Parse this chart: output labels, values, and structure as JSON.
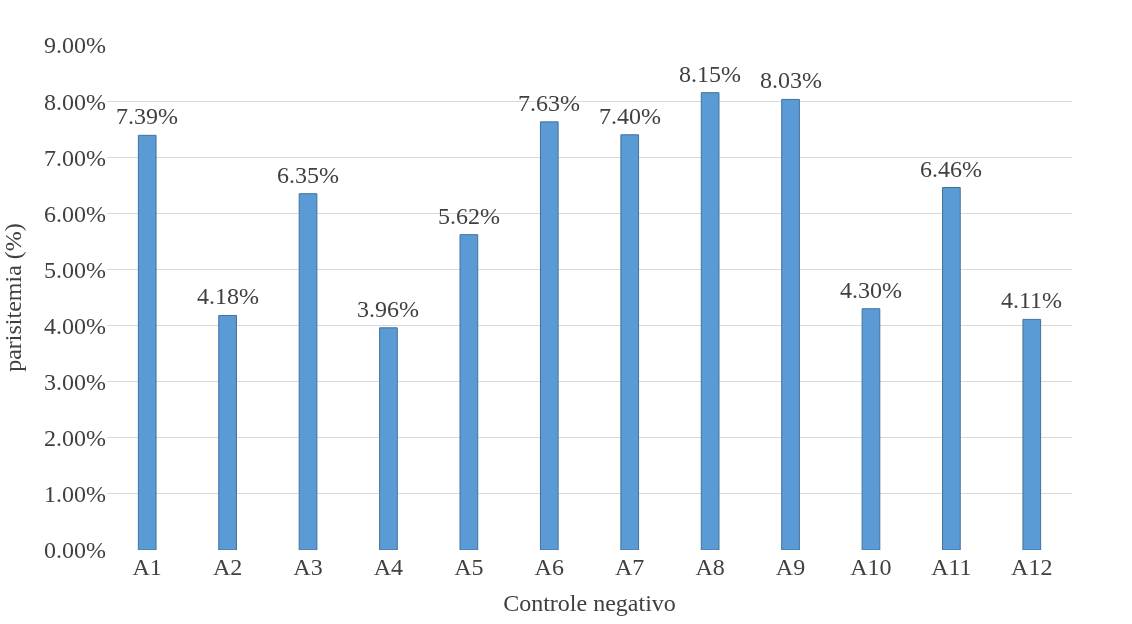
{
  "chart_data": {
    "type": "bar",
    "xlabel": "Controle negativo",
    "ylabel": "parisitemia (%)",
    "categories": [
      "A1",
      "A2",
      "A3",
      "A4",
      "A5",
      "A6",
      "A7",
      "A8",
      "A9",
      "A10",
      "A11",
      "A12"
    ],
    "values": [
      7.39,
      4.18,
      6.35,
      3.96,
      5.62,
      7.63,
      7.4,
      8.15,
      8.03,
      4.3,
      6.46,
      4.11
    ],
    "value_labels": [
      "7.39%",
      "4.18%",
      "6.35%",
      "3.96%",
      "5.62%",
      "7.63%",
      "7.40%",
      "8.15%",
      "8.03%",
      "4.30%",
      "6.46%",
      "4.11%"
    ],
    "color": "#5b9bd5",
    "ylim": [
      0,
      9
    ],
    "yticks": [
      {
        "value": 0,
        "label": "0.00%"
      },
      {
        "value": 1,
        "label": "1.00%"
      },
      {
        "value": 2,
        "label": "2.00%"
      },
      {
        "value": 3,
        "label": "3.00%"
      },
      {
        "value": 4,
        "label": "4.00%"
      },
      {
        "value": 5,
        "label": "5.00%"
      },
      {
        "value": 6,
        "label": "6.00%"
      },
      {
        "value": 7,
        "label": "7.00%"
      },
      {
        "value": 8,
        "label": "8.00%"
      },
      {
        "value": 9,
        "label": "9.00%"
      }
    ],
    "grid": "y"
  }
}
